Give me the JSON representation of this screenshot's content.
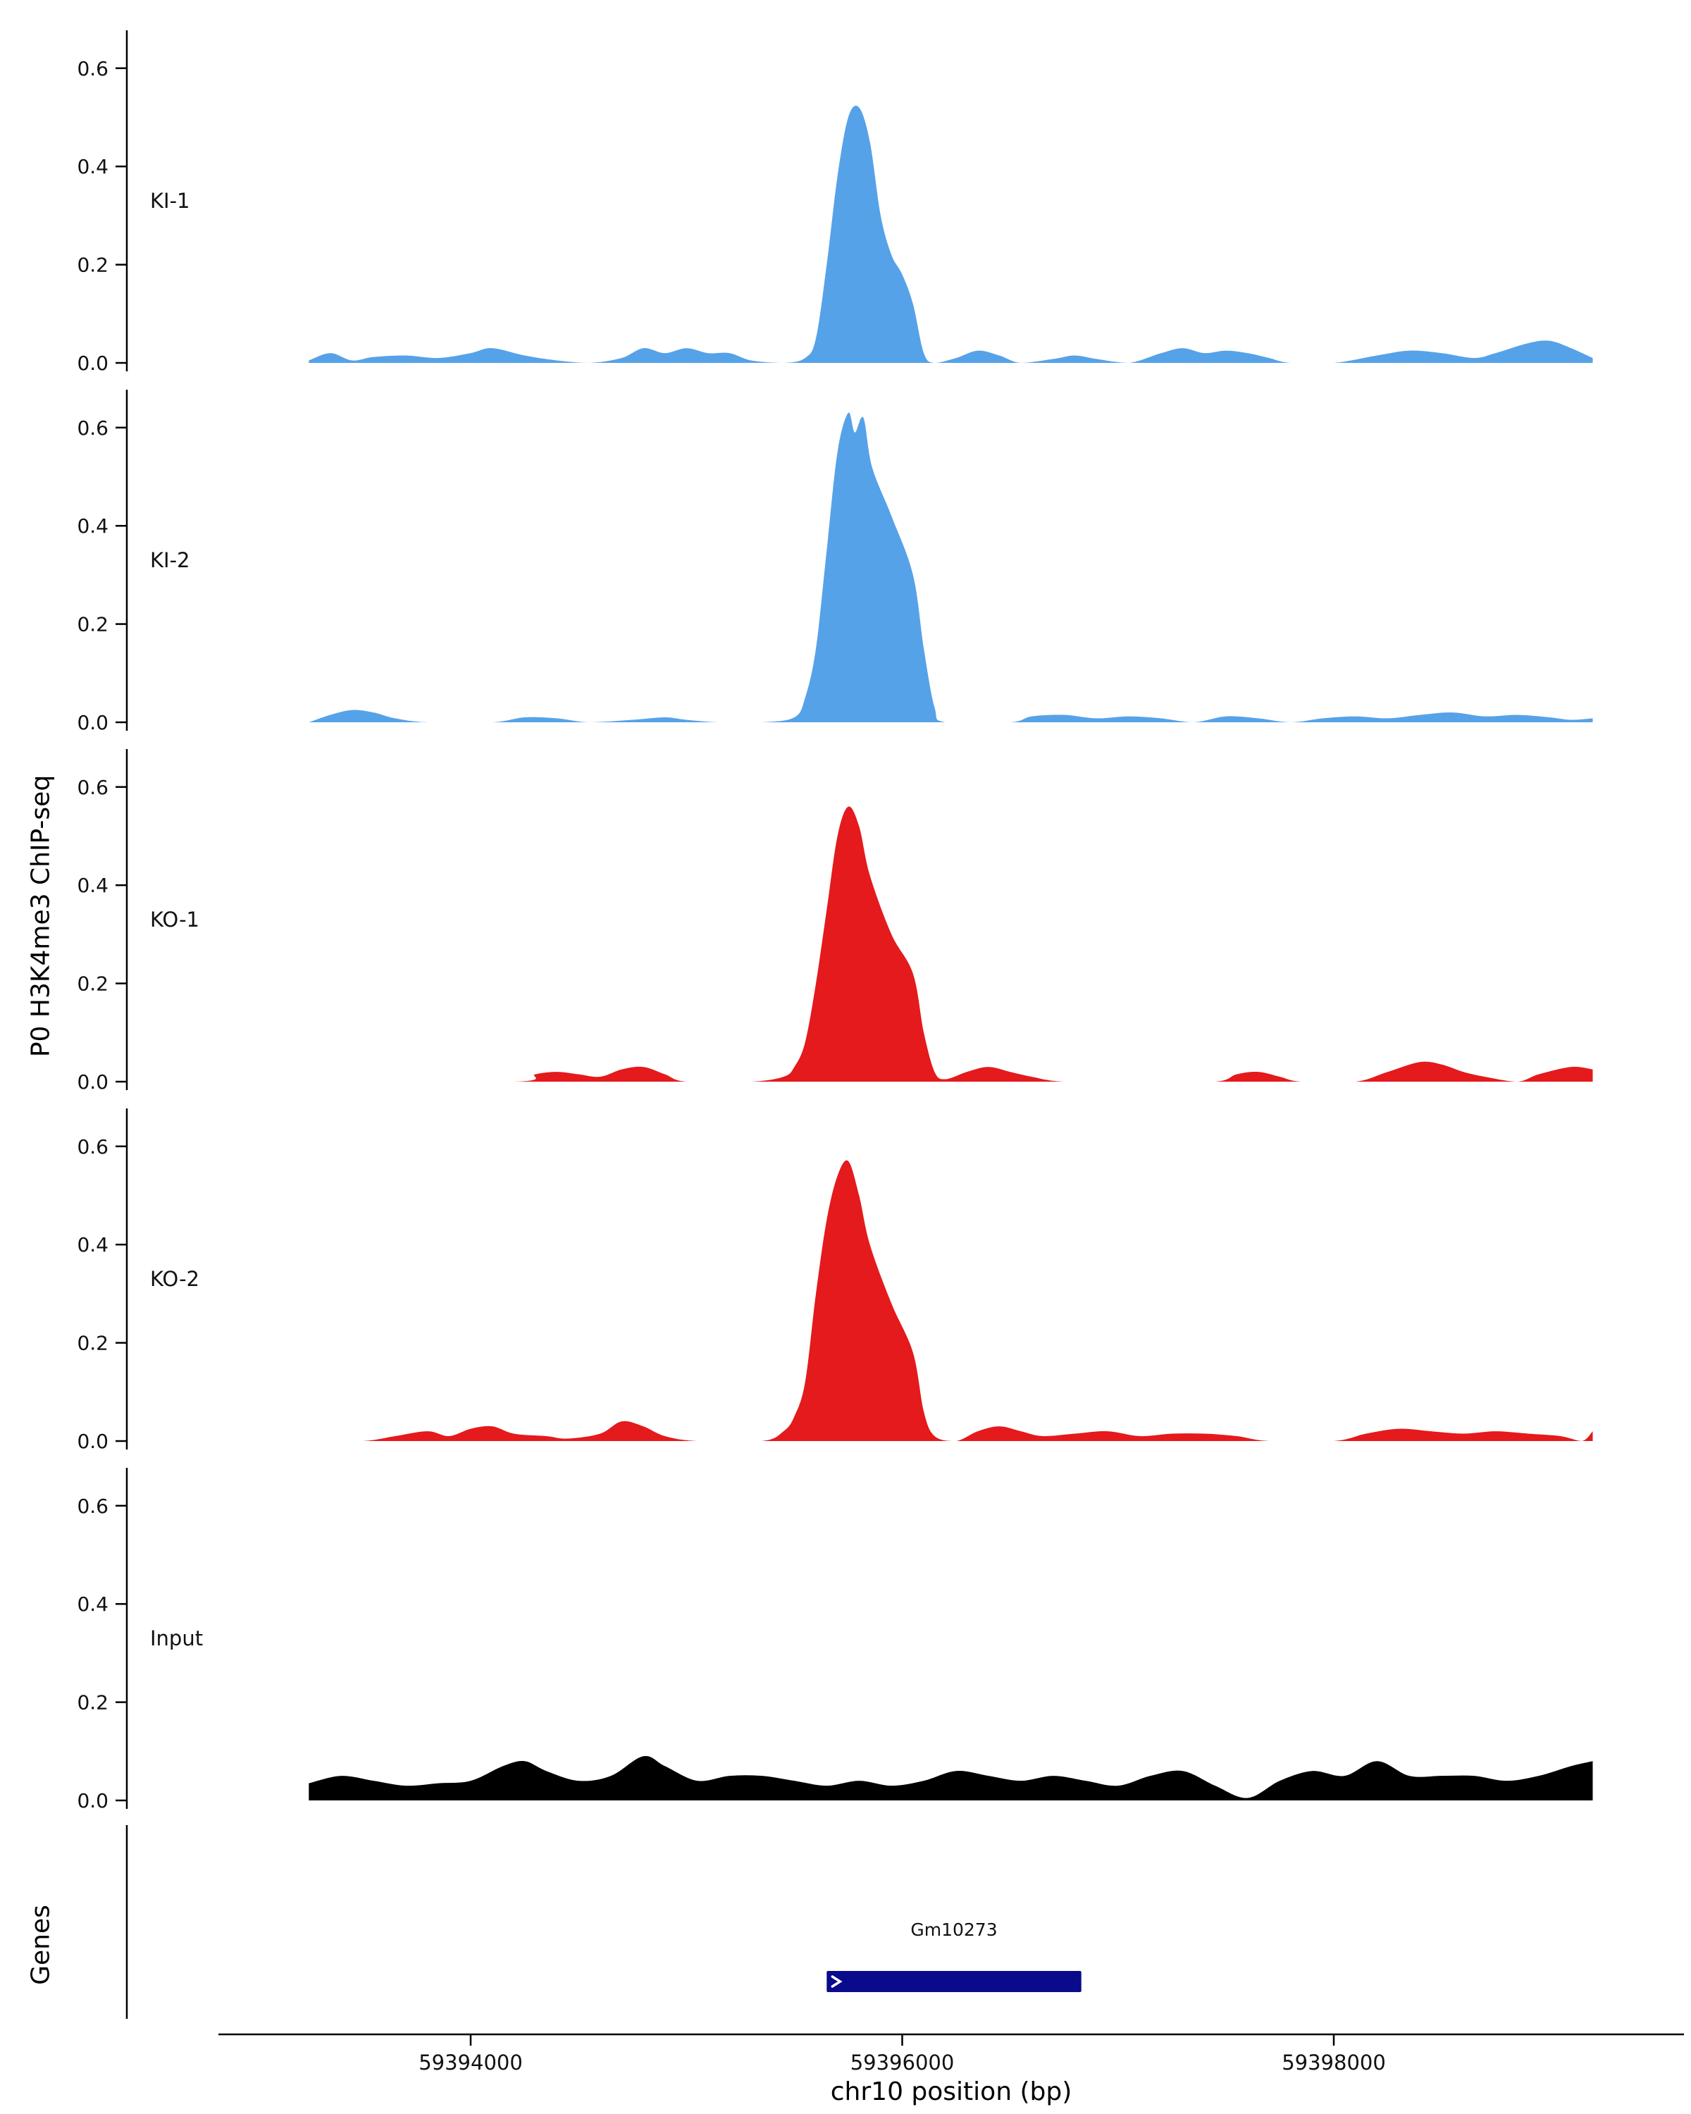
{
  "labels": {
    "y_axis_title": "P0 H3K4me3 ChIP-seq",
    "genes_title": "Genes"
  },
  "chart_data": {
    "type": "area",
    "title": "",
    "x_axis": {
      "label": "chr10 position (bp)",
      "ticks": [
        59394000,
        59396000,
        59398000
      ],
      "tick_labels": [
        "59394000",
        "59396000",
        "59398000"
      ],
      "domain": [
        59393250,
        59399200
      ]
    },
    "y_axis": {
      "ticks": [
        0.0,
        0.2,
        0.4,
        0.6
      ],
      "tick_labels": [
        "0.0",
        "0.2",
        "0.4",
        "0.6"
      ],
      "domain": [
        0,
        0.65
      ]
    },
    "grid": false,
    "legend": "none",
    "series": [
      {
        "name": "KI-1",
        "color": "#56A2E8",
        "points": [
          [
            59393250,
            0.005
          ],
          [
            59393350,
            0.02
          ],
          [
            59393450,
            0.005
          ],
          [
            59393550,
            0.012
          ],
          [
            59393700,
            0.015
          ],
          [
            59393850,
            0.01
          ],
          [
            59394000,
            0.02
          ],
          [
            59394100,
            0.03
          ],
          [
            59394250,
            0.015
          ],
          [
            59394400,
            0.005
          ],
          [
            59394550,
            0.0
          ],
          [
            59394700,
            0.01
          ],
          [
            59394800,
            0.03
          ],
          [
            59394900,
            0.02
          ],
          [
            59395000,
            0.03
          ],
          [
            59395100,
            0.02
          ],
          [
            59395200,
            0.02
          ],
          [
            59395300,
            0.005
          ],
          [
            59395450,
            0.0
          ],
          [
            59395550,
            0.01
          ],
          [
            59395600,
            0.05
          ],
          [
            59395650,
            0.2
          ],
          [
            59395700,
            0.38
          ],
          [
            59395750,
            0.5
          ],
          [
            59395800,
            0.52
          ],
          [
            59395850,
            0.45
          ],
          [
            59395900,
            0.3
          ],
          [
            59395950,
            0.22
          ],
          [
            59396000,
            0.18
          ],
          [
            59396050,
            0.12
          ],
          [
            59396100,
            0.02
          ],
          [
            59396150,
            0.0
          ],
          [
            59396250,
            0.01
          ],
          [
            59396350,
            0.025
          ],
          [
            59396450,
            0.015
          ],
          [
            59396550,
            0.0
          ],
          [
            59396700,
            0.008
          ],
          [
            59396800,
            0.015
          ],
          [
            59396900,
            0.008
          ],
          [
            59397050,
            0.0
          ],
          [
            59397200,
            0.02
          ],
          [
            59397300,
            0.03
          ],
          [
            59397400,
            0.02
          ],
          [
            59397500,
            0.025
          ],
          [
            59397600,
            0.02
          ],
          [
            59397700,
            0.01
          ],
          [
            59397800,
            0.0
          ],
          [
            59398000,
            0.0
          ],
          [
            59398200,
            0.015
          ],
          [
            59398350,
            0.025
          ],
          [
            59398500,
            0.02
          ],
          [
            59398650,
            0.01
          ],
          [
            59398750,
            0.02
          ],
          [
            59398900,
            0.04
          ],
          [
            59399000,
            0.045
          ],
          [
            59399100,
            0.03
          ],
          [
            59399200,
            0.01
          ]
        ]
      },
      {
        "name": "KI-2",
        "color": "#56A2E8",
        "points": [
          [
            59393250,
            0.0
          ],
          [
            59393350,
            0.015
          ],
          [
            59393450,
            0.025
          ],
          [
            59393550,
            0.02
          ],
          [
            59393650,
            0.008
          ],
          [
            59393800,
            0.0
          ],
          [
            59394100,
            0.0
          ],
          [
            59394250,
            0.01
          ],
          [
            59394400,
            0.008
          ],
          [
            59394550,
            0.0
          ],
          [
            59394750,
            0.005
          ],
          [
            59394900,
            0.01
          ],
          [
            59395000,
            0.005
          ],
          [
            59395150,
            0.0
          ],
          [
            59395350,
            0.0
          ],
          [
            59395500,
            0.01
          ],
          [
            59395550,
            0.05
          ],
          [
            59395600,
            0.15
          ],
          [
            59395650,
            0.35
          ],
          [
            59395700,
            0.55
          ],
          [
            59395750,
            0.63
          ],
          [
            59395780,
            0.59
          ],
          [
            59395820,
            0.62
          ],
          [
            59395860,
            0.52
          ],
          [
            59395950,
            0.42
          ],
          [
            59396050,
            0.3
          ],
          [
            59396100,
            0.15
          ],
          [
            59396150,
            0.03
          ],
          [
            59396200,
            0.0
          ],
          [
            59396500,
            0.0
          ],
          [
            59396600,
            0.012
          ],
          [
            59396750,
            0.015
          ],
          [
            59396900,
            0.008
          ],
          [
            59397050,
            0.012
          ],
          [
            59397200,
            0.008
          ],
          [
            59397350,
            0.0
          ],
          [
            59397500,
            0.012
          ],
          [
            59397650,
            0.008
          ],
          [
            59397800,
            0.0
          ],
          [
            59397950,
            0.008
          ],
          [
            59398100,
            0.012
          ],
          [
            59398250,
            0.008
          ],
          [
            59398400,
            0.015
          ],
          [
            59398550,
            0.02
          ],
          [
            59398700,
            0.012
          ],
          [
            59398850,
            0.015
          ],
          [
            59399000,
            0.01
          ],
          [
            59399100,
            0.005
          ],
          [
            59399200,
            0.008
          ]
        ]
      },
      {
        "name": "KO-1",
        "color": "#E41A1C",
        "points": [
          [
            59393250,
            0.0
          ],
          [
            59394200,
            0.0
          ],
          [
            59394300,
            0.015
          ],
          [
            59394400,
            0.02
          ],
          [
            59394500,
            0.015
          ],
          [
            59394600,
            0.01
          ],
          [
            59394700,
            0.025
          ],
          [
            59394800,
            0.03
          ],
          [
            59394900,
            0.015
          ],
          [
            59395000,
            0.0
          ],
          [
            59395300,
            0.0
          ],
          [
            59395450,
            0.01
          ],
          [
            59395500,
            0.03
          ],
          [
            59395550,
            0.08
          ],
          [
            59395600,
            0.2
          ],
          [
            59395650,
            0.35
          ],
          [
            59395700,
            0.5
          ],
          [
            59395750,
            0.56
          ],
          [
            59395800,
            0.52
          ],
          [
            59395850,
            0.42
          ],
          [
            59395950,
            0.3
          ],
          [
            59396050,
            0.22
          ],
          [
            59396100,
            0.1
          ],
          [
            59396150,
            0.02
          ],
          [
            59396200,
            0.005
          ],
          [
            59396300,
            0.02
          ],
          [
            59396400,
            0.03
          ],
          [
            59396500,
            0.02
          ],
          [
            59396600,
            0.01
          ],
          [
            59396750,
            0.0
          ],
          [
            59397100,
            0.0
          ],
          [
            59397450,
            0.0
          ],
          [
            59397550,
            0.015
          ],
          [
            59397650,
            0.02
          ],
          [
            59397750,
            0.01
          ],
          [
            59397850,
            0.0
          ],
          [
            59398100,
            0.0
          ],
          [
            59398250,
            0.02
          ],
          [
            59398400,
            0.04
          ],
          [
            59398500,
            0.035
          ],
          [
            59398600,
            0.02
          ],
          [
            59398700,
            0.01
          ],
          [
            59398850,
            0.0
          ],
          [
            59398950,
            0.015
          ],
          [
            59399100,
            0.03
          ],
          [
            59399200,
            0.025
          ]
        ]
      },
      {
        "name": "KO-2",
        "color": "#E41A1C",
        "points": [
          [
            59393250,
            0.0
          ],
          [
            59393500,
            0.0
          ],
          [
            59393650,
            0.01
          ],
          [
            59393800,
            0.02
          ],
          [
            59393900,
            0.01
          ],
          [
            59394000,
            0.025
          ],
          [
            59394100,
            0.03
          ],
          [
            59394200,
            0.015
          ],
          [
            59394350,
            0.01
          ],
          [
            59394450,
            0.005
          ],
          [
            59394600,
            0.015
          ],
          [
            59394700,
            0.04
          ],
          [
            59394800,
            0.03
          ],
          [
            59394900,
            0.01
          ],
          [
            59395050,
            0.0
          ],
          [
            59395350,
            0.0
          ],
          [
            59395450,
            0.02
          ],
          [
            59395500,
            0.05
          ],
          [
            59395550,
            0.12
          ],
          [
            59395600,
            0.3
          ],
          [
            59395650,
            0.45
          ],
          [
            59395700,
            0.54
          ],
          [
            59395750,
            0.57
          ],
          [
            59395800,
            0.5
          ],
          [
            59395850,
            0.4
          ],
          [
            59395950,
            0.28
          ],
          [
            59396050,
            0.18
          ],
          [
            59396100,
            0.06
          ],
          [
            59396150,
            0.01
          ],
          [
            59396250,
            0.0
          ],
          [
            59396350,
            0.02
          ],
          [
            59396450,
            0.03
          ],
          [
            59396550,
            0.02
          ],
          [
            59396650,
            0.01
          ],
          [
            59396800,
            0.015
          ],
          [
            59396950,
            0.02
          ],
          [
            59397100,
            0.01
          ],
          [
            59397250,
            0.015
          ],
          [
            59397400,
            0.015
          ],
          [
            59397550,
            0.01
          ],
          [
            59397700,
            0.0
          ],
          [
            59398000,
            0.0
          ],
          [
            59398150,
            0.015
          ],
          [
            59398300,
            0.025
          ],
          [
            59398450,
            0.02
          ],
          [
            59398600,
            0.015
          ],
          [
            59398750,
            0.02
          ],
          [
            59398900,
            0.015
          ],
          [
            59399050,
            0.01
          ],
          [
            59399150,
            0.0
          ],
          [
            59399200,
            0.02
          ]
        ]
      },
      {
        "name": "Input",
        "color": "#000000",
        "points": [
          [
            59393250,
            0.035
          ],
          [
            59393400,
            0.05
          ],
          [
            59393550,
            0.04
          ],
          [
            59393700,
            0.03
          ],
          [
            59393850,
            0.035
          ],
          [
            59394000,
            0.04
          ],
          [
            59394150,
            0.07
          ],
          [
            59394250,
            0.08
          ],
          [
            59394350,
            0.06
          ],
          [
            59394500,
            0.04
          ],
          [
            59394650,
            0.05
          ],
          [
            59394800,
            0.09
          ],
          [
            59394900,
            0.07
          ],
          [
            59395050,
            0.04
          ],
          [
            59395200,
            0.05
          ],
          [
            59395350,
            0.05
          ],
          [
            59395500,
            0.04
          ],
          [
            59395650,
            0.03
          ],
          [
            59395800,
            0.04
          ],
          [
            59395950,
            0.03
          ],
          [
            59396100,
            0.04
          ],
          [
            59396250,
            0.06
          ],
          [
            59396400,
            0.05
          ],
          [
            59396550,
            0.04
          ],
          [
            59396700,
            0.05
          ],
          [
            59396850,
            0.04
          ],
          [
            59397000,
            0.03
          ],
          [
            59397150,
            0.05
          ],
          [
            59397300,
            0.06
          ],
          [
            59397450,
            0.03
          ],
          [
            59397600,
            0.005
          ],
          [
            59397750,
            0.04
          ],
          [
            59397900,
            0.06
          ],
          [
            59398050,
            0.05
          ],
          [
            59398200,
            0.08
          ],
          [
            59398350,
            0.05
          ],
          [
            59398500,
            0.05
          ],
          [
            59398650,
            0.05
          ],
          [
            59398800,
            0.04
          ],
          [
            59398950,
            0.05
          ],
          [
            59399100,
            0.07
          ],
          [
            59399200,
            0.08
          ]
        ]
      }
    ],
    "gene_track": {
      "title": "Genes",
      "genes": [
        {
          "label": "Gm10273",
          "start": 59395650,
          "end": 59396830,
          "strand": "forward",
          "color": "#0A0A8C"
        }
      ]
    }
  }
}
